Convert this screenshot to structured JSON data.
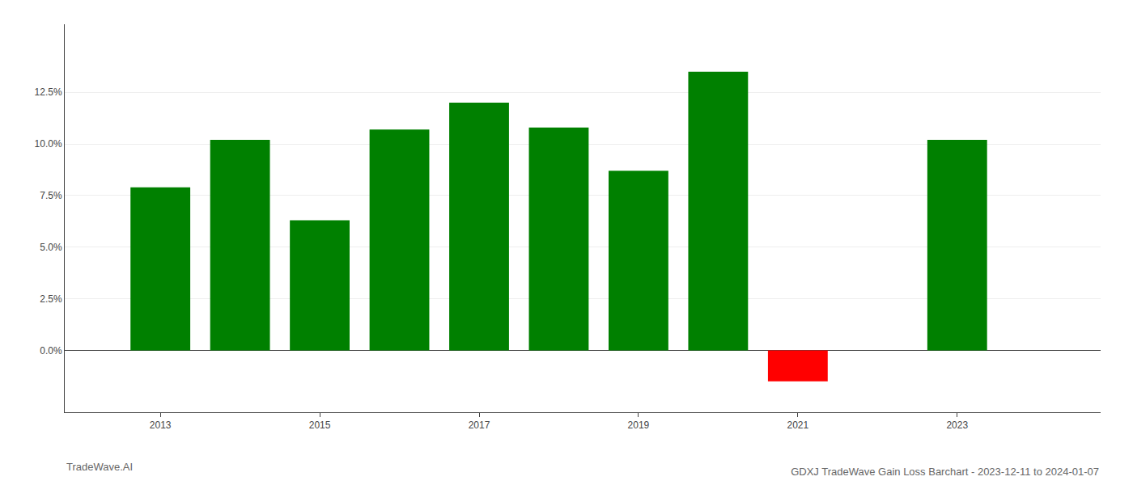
{
  "chart_data": {
    "type": "bar",
    "title": "GDXJ TradeWave Gain Loss Barchart - 2023-12-11 to 2024-01-07",
    "annotations": [
      "TradeWave.AI"
    ],
    "x": [
      2013,
      2014,
      2015,
      2016,
      2017,
      2018,
      2019,
      2020,
      2021,
      2023
    ],
    "values": [
      0.079,
      0.102,
      0.063,
      0.107,
      0.12,
      0.108,
      0.087,
      0.135,
      -0.015,
      0.102
    ],
    "colors": [
      "#008000",
      "#008000",
      "#008000",
      "#008000",
      "#008000",
      "#008000",
      "#008000",
      "#008000",
      "#ff0000",
      "#008000"
    ],
    "xlim": [
      2011.8,
      2024.8
    ],
    "xticks": [
      2013,
      2015,
      2017,
      2019,
      2021,
      2023
    ],
    "ylim": [
      -0.03,
      0.158
    ],
    "yticks": [
      {
        "value": 0.0,
        "label": "0.0%"
      },
      {
        "value": 0.025,
        "label": "2.5%"
      },
      {
        "value": 0.05,
        "label": "5.0%"
      },
      {
        "value": 0.075,
        "label": "7.5%"
      },
      {
        "value": 0.1,
        "label": "10.0%"
      },
      {
        "value": 0.125,
        "label": "12.5%"
      }
    ],
    "grid": true
  }
}
